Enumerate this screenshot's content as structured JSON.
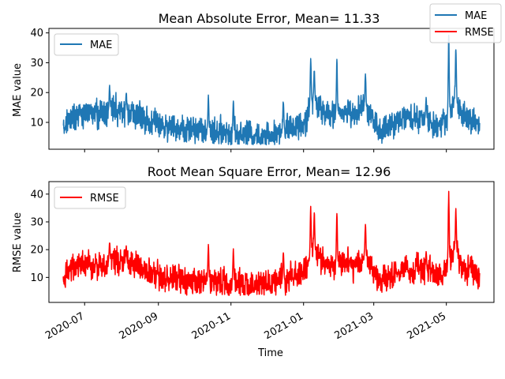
{
  "figure": {
    "global_legend": [
      {
        "label": "MAE",
        "color": "#1f77b4"
      },
      {
        "label": "RMSE",
        "color": "#ff0000"
      }
    ],
    "xlabel": "Time"
  },
  "chart_data": [
    {
      "type": "line",
      "title": "Mean Absolute Error, Mean= 11.33",
      "ylabel": "MAE value",
      "xlabel": "Time",
      "x_range": [
        "2020-06-13",
        "2021-05-29"
      ],
      "xlim": [
        "2020-06-01",
        "2021-06-10"
      ],
      "ylim": [
        1,
        41.5
      ],
      "yticks": [
        10,
        20,
        30,
        40
      ],
      "xticks": [
        "2020-07",
        "2020-09",
        "2020-11",
        "2021-01",
        "2021-03",
        "2021-05"
      ],
      "legend": {
        "position": "upper left",
        "entries": [
          "MAE"
        ]
      },
      "grid": false,
      "series": [
        {
          "name": "MAE",
          "color": "#1f77b4",
          "knots": [
            [
              "2020-06-13",
              8
            ],
            [
              "2020-06-20",
              12
            ],
            [
              "2020-06-27",
              13
            ],
            [
              "2020-07-04",
              13
            ],
            [
              "2020-07-11",
              12
            ],
            [
              "2020-07-18",
              13
            ],
            [
              "2020-07-25",
              15
            ],
            [
              "2020-08-01",
              14
            ],
            [
              "2020-08-08",
              13
            ],
            [
              "2020-08-15",
              12
            ],
            [
              "2020-08-22",
              11
            ],
            [
              "2020-08-29",
              10
            ],
            [
              "2020-09-05",
              8
            ],
            [
              "2020-09-12",
              8
            ],
            [
              "2020-09-19",
              8
            ],
            [
              "2020-09-26",
              7
            ],
            [
              "2020-10-03",
              8
            ],
            [
              "2020-10-10",
              7
            ],
            [
              "2020-10-17",
              7
            ],
            [
              "2020-10-24",
              7
            ],
            [
              "2020-10-31",
              6
            ],
            [
              "2020-11-07",
              6
            ],
            [
              "2020-11-14",
              6
            ],
            [
              "2020-11-21",
              5.5
            ],
            [
              "2020-11-28",
              6
            ],
            [
              "2020-12-05",
              6
            ],
            [
              "2020-12-12",
              7
            ],
            [
              "2020-12-19",
              8
            ],
            [
              "2020-12-26",
              9
            ],
            [
              "2021-01-02",
              10
            ],
            [
              "2021-01-09",
              18
            ],
            [
              "2021-01-16",
              14
            ],
            [
              "2021-01-23",
              12
            ],
            [
              "2021-01-30",
              13
            ],
            [
              "2021-02-06",
              14
            ],
            [
              "2021-02-13",
              12
            ],
            [
              "2021-02-20",
              16
            ],
            [
              "2021-02-27",
              12
            ],
            [
              "2021-03-06",
              7
            ],
            [
              "2021-03-13",
              8
            ],
            [
              "2021-03-20",
              10
            ],
            [
              "2021-03-27",
              12
            ],
            [
              "2021-04-03",
              11
            ],
            [
              "2021-04-10",
              12
            ],
            [
              "2021-04-17",
              10
            ],
            [
              "2021-04-24",
              9
            ],
            [
              "2021-05-01",
              11
            ],
            [
              "2021-05-08",
              18
            ],
            [
              "2021-05-15",
              12
            ],
            [
              "2021-05-22",
              11
            ],
            [
              "2021-05-29",
              9
            ]
          ],
          "spikes": [
            [
              "2020-07-22",
              22.5
            ],
            [
              "2020-08-05",
              20.5
            ],
            [
              "2020-10-13",
              19.5
            ],
            [
              "2020-11-03",
              18.5
            ],
            [
              "2020-12-15",
              18
            ],
            [
              "2021-01-07",
              32.5
            ],
            [
              "2021-01-10",
              28
            ],
            [
              "2021-01-29",
              32
            ],
            [
              "2021-02-22",
              27.5
            ],
            [
              "2021-04-14",
              18.5
            ],
            [
              "2021-05-03",
              40
            ],
            [
              "2021-05-09",
              36
            ]
          ],
          "noise_amplitude": 3.5,
          "min_value": 2.5
        }
      ]
    },
    {
      "type": "line",
      "title": "Root Mean Square Error, Mean= 12.96",
      "ylabel": "RMSE value",
      "xlabel": "Time",
      "x_range": [
        "2020-06-13",
        "2021-05-29"
      ],
      "xlim": [
        "2020-06-01",
        "2021-06-10"
      ],
      "ylim": [
        1,
        44.5
      ],
      "yticks": [
        10,
        20,
        30,
        40
      ],
      "xticks": [
        "2020-07",
        "2020-09",
        "2020-11",
        "2021-01",
        "2021-03",
        "2021-05"
      ],
      "legend": {
        "position": "upper left",
        "entries": [
          "RMSE"
        ]
      },
      "grid": false,
      "series": [
        {
          "name": "RMSE",
          "color": "#ff0000",
          "knots": [
            [
              "2020-06-13",
              9
            ],
            [
              "2020-06-20",
              13
            ],
            [
              "2020-06-27",
              14.5
            ],
            [
              "2020-07-04",
              14.5
            ],
            [
              "2020-07-11",
              13.5
            ],
            [
              "2020-07-18",
              14.5
            ],
            [
              "2020-07-25",
              16.5
            ],
            [
              "2020-08-01",
              15.5
            ],
            [
              "2020-08-08",
              14.5
            ],
            [
              "2020-08-15",
              13.5
            ],
            [
              "2020-08-22",
              12.5
            ],
            [
              "2020-08-29",
              11.5
            ],
            [
              "2020-09-05",
              9.5
            ],
            [
              "2020-09-12",
              9.5
            ],
            [
              "2020-09-19",
              9.5
            ],
            [
              "2020-09-26",
              8.5
            ],
            [
              "2020-10-03",
              9.5
            ],
            [
              "2020-10-10",
              8.5
            ],
            [
              "2020-10-17",
              8.5
            ],
            [
              "2020-10-24",
              8.5
            ],
            [
              "2020-10-31",
              7.5
            ],
            [
              "2020-11-07",
              7.5
            ],
            [
              "2020-11-14",
              7.5
            ],
            [
              "2020-11-21",
              7
            ],
            [
              "2020-11-28",
              7.5
            ],
            [
              "2020-12-05",
              7.5
            ],
            [
              "2020-12-12",
              8.5
            ],
            [
              "2020-12-19",
              9.5
            ],
            [
              "2020-12-26",
              10.5
            ],
            [
              "2021-01-02",
              11.5
            ],
            [
              "2021-01-09",
              20.5
            ],
            [
              "2021-01-16",
              16
            ],
            [
              "2021-01-23",
              14
            ],
            [
              "2021-01-30",
              15
            ],
            [
              "2021-02-06",
              16
            ],
            [
              "2021-02-13",
              14
            ],
            [
              "2021-02-20",
              18
            ],
            [
              "2021-02-27",
              14
            ],
            [
              "2021-03-06",
              8.5
            ],
            [
              "2021-03-13",
              9.5
            ],
            [
              "2021-03-20",
              11.5
            ],
            [
              "2021-03-27",
              13.5
            ],
            [
              "2021-04-03",
              12.5
            ],
            [
              "2021-04-10",
              13.5
            ],
            [
              "2021-04-17",
              11.5
            ],
            [
              "2021-04-24",
              10.5
            ],
            [
              "2021-05-01",
              12.5
            ],
            [
              "2021-05-08",
              20.5
            ],
            [
              "2021-05-15",
              13.5
            ],
            [
              "2021-05-22",
              12.5
            ],
            [
              "2021-05-29",
              10.5
            ]
          ],
          "spikes": [
            [
              "2020-07-22",
              23
            ],
            [
              "2020-08-05",
              21.5
            ],
            [
              "2020-10-13",
              22.5
            ],
            [
              "2020-11-03",
              21
            ],
            [
              "2020-12-15",
              20.5
            ],
            [
              "2021-01-07",
              36
            ],
            [
              "2021-01-10",
              34
            ],
            [
              "2021-01-29",
              34
            ],
            [
              "2021-02-22",
              30
            ],
            [
              "2021-04-14",
              20
            ],
            [
              "2021-05-03",
              42.5
            ],
            [
              "2021-05-09",
              35
            ]
          ],
          "noise_amplitude": 3.8,
          "min_value": 3.5
        }
      ]
    }
  ]
}
